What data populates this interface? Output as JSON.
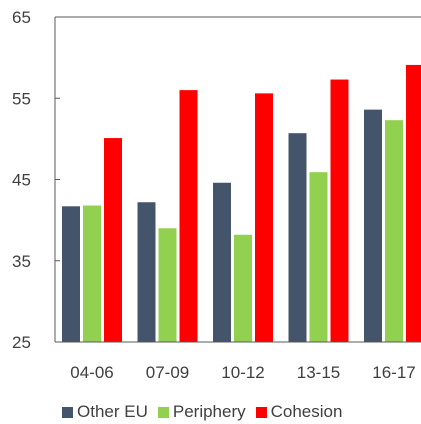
{
  "chart_data": {
    "type": "bar",
    "categories": [
      "04-06",
      "07-09",
      "10-12",
      "13-15",
      "16-17"
    ],
    "series": [
      {
        "name": "Other EU",
        "color": "#44546a",
        "values": [
          41.7,
          42.2,
          44.6,
          50.7,
          53.6
        ]
      },
      {
        "name": "Periphery",
        "color": "#92d050",
        "values": [
          41.8,
          39.0,
          38.2,
          45.9,
          52.3
        ]
      },
      {
        "name": "Cohesion",
        "color": "#ff0000",
        "values": [
          50.1,
          56.0,
          55.6,
          57.3,
          59.1
        ]
      }
    ],
    "y_ticks": [
      "25",
      "35",
      "45",
      "55",
      "65"
    ],
    "ylim": [
      25,
      65
    ],
    "grid": false,
    "legend_position": "bottom"
  }
}
